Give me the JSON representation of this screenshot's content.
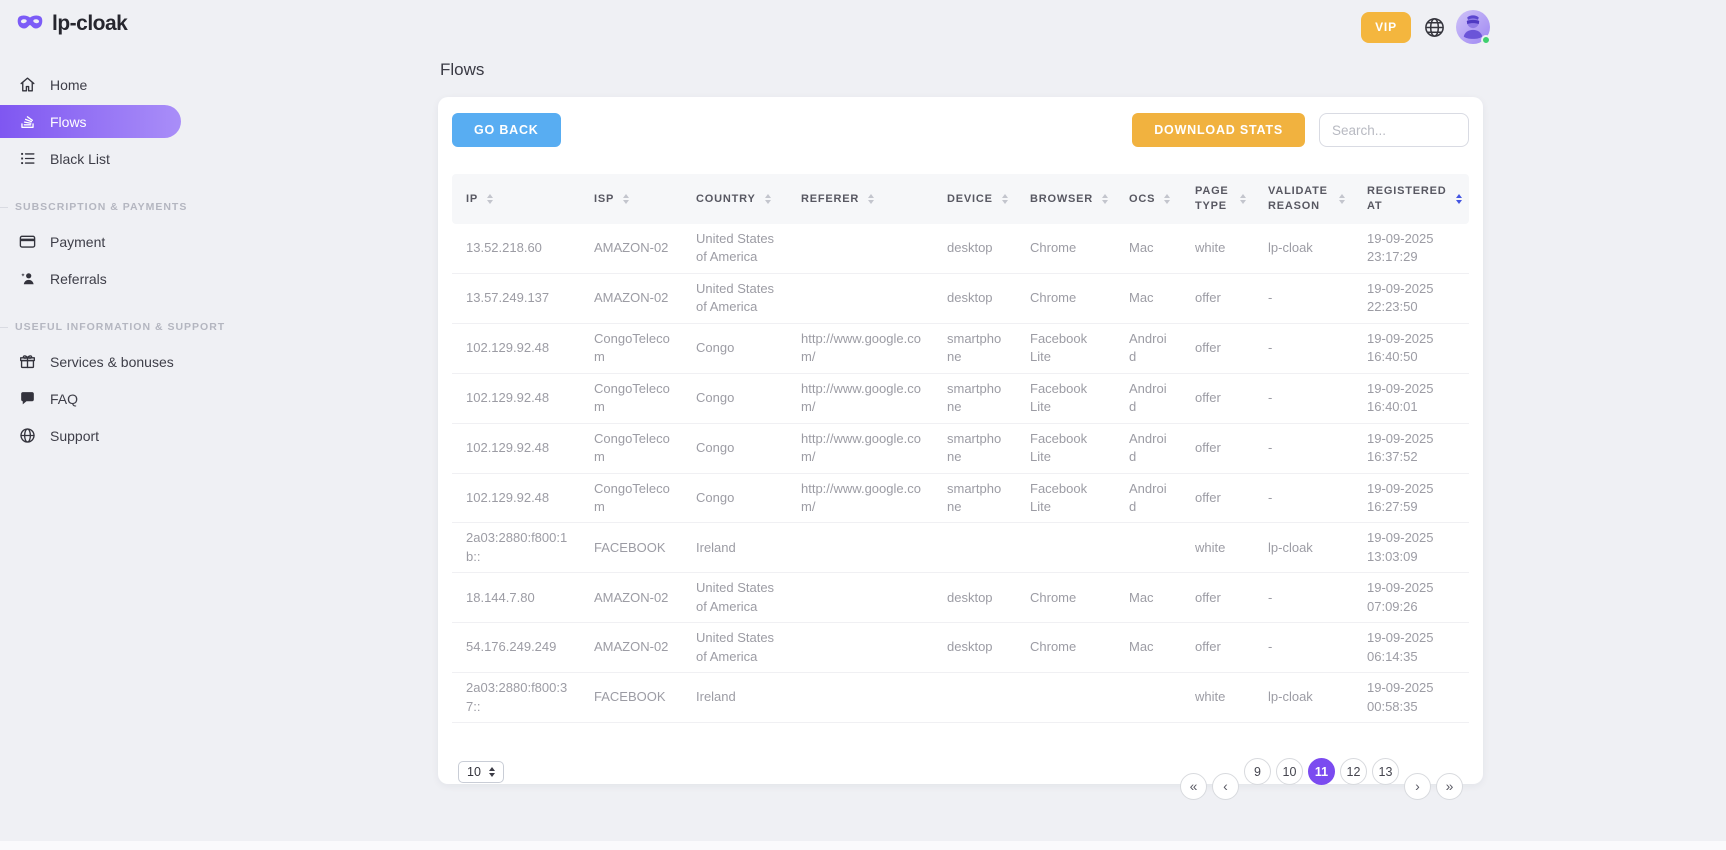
{
  "brand": {
    "name": "lp-cloak"
  },
  "topbar": {
    "vip_label": "VIP"
  },
  "sidebar": {
    "items": [
      {
        "label": "Home",
        "icon": "home-icon",
        "active": false
      },
      {
        "label": "Flows",
        "icon": "flows-icon",
        "active": true
      },
      {
        "label": "Black List",
        "icon": "blacklist-icon",
        "active": false
      }
    ],
    "sections": [
      {
        "title": "SUBSCRIPTION & PAYMENTS",
        "items": [
          {
            "label": "Payment",
            "icon": "credit-card-icon"
          },
          {
            "label": "Referrals",
            "icon": "referrals-icon"
          }
        ]
      },
      {
        "title": "USEFUL INFORMATION & SUPPORT",
        "items": [
          {
            "label": "Services & bonuses",
            "icon": "gift-icon"
          },
          {
            "label": "FAQ",
            "icon": "faq-icon"
          },
          {
            "label": "Support",
            "icon": "support-globe-icon"
          }
        ]
      }
    ]
  },
  "page": {
    "title": "Flows"
  },
  "toolbar": {
    "go_back": "GO BACK",
    "download_stats": "DOWNLOAD STATS",
    "search_placeholder": "Search..."
  },
  "table": {
    "columns": [
      "IP",
      "ISP",
      "COUNTRY",
      "REFERER",
      "DEVICE",
      "BROWSER",
      "OCS",
      "PAGE TYPE",
      "VALIDATE REASON",
      "REGISTERED AT"
    ],
    "sorted_column": "REGISTERED AT",
    "rows": [
      [
        "13.52.218.60",
        "AMAZON-02",
        "United States of America",
        "",
        "desktop",
        "Chrome",
        "Mac",
        "white",
        "lp-cloak",
        "19-09-2025 23:17:29"
      ],
      [
        "13.57.249.137",
        "AMAZON-02",
        "United States of America",
        "",
        "desktop",
        "Chrome",
        "Mac",
        "offer",
        "-",
        "19-09-2025 22:23:50"
      ],
      [
        "102.129.92.48",
        "CongoTelecom",
        "Congo",
        "http://www.google.com/",
        "smartphone",
        "Facebook Lite",
        "Android",
        "offer",
        "-",
        "19-09-2025 16:40:50"
      ],
      [
        "102.129.92.48",
        "CongoTelecom",
        "Congo",
        "http://www.google.com/",
        "smartphone",
        "Facebook Lite",
        "Android",
        "offer",
        "-",
        "19-09-2025 16:40:01"
      ],
      [
        "102.129.92.48",
        "CongoTelecom",
        "Congo",
        "http://www.google.com/",
        "smartphone",
        "Facebook Lite",
        "Android",
        "offer",
        "-",
        "19-09-2025 16:37:52"
      ],
      [
        "102.129.92.48",
        "CongoTelecom",
        "Congo",
        "http://www.google.com/",
        "smartphone",
        "Facebook Lite",
        "Android",
        "offer",
        "-",
        "19-09-2025 16:27:59"
      ],
      [
        "2a03:2880:f800:1b::",
        "FACEBOOK",
        "Ireland",
        "",
        "",
        "",
        "",
        "white",
        "lp-cloak",
        "19-09-2025 13:03:09"
      ],
      [
        "18.144.7.80",
        "AMAZON-02",
        "United States of America",
        "",
        "desktop",
        "Chrome",
        "Mac",
        "offer",
        "-",
        "19-09-2025 07:09:26"
      ],
      [
        "54.176.249.249",
        "AMAZON-02",
        "United States of America",
        "",
        "desktop",
        "Chrome",
        "Mac",
        "offer",
        "-",
        "19-09-2025 06:14:35"
      ],
      [
        "2a03:2880:f800:37::",
        "FACEBOOK",
        "Ireland",
        "",
        "",
        "",
        "",
        "white",
        "lp-cloak",
        "19-09-2025 00:58:35"
      ]
    ]
  },
  "pagination": {
    "page_size": "10",
    "first": "«",
    "prev": "‹",
    "pages": [
      "9",
      "10",
      "11",
      "12",
      "13"
    ],
    "active_page": "11",
    "next": "›",
    "last": "»"
  },
  "colors": {
    "accent_purple": "#7b4bf0",
    "sidebar_active_gradient": [
      "#7f57f1",
      "#a98ef8"
    ],
    "blue_button": "#58adf2",
    "orange_button": "#f1b23f",
    "vip_orange": "#f4b63e",
    "status_green": "#3ecf6e",
    "active_sort": "#4455e2"
  }
}
